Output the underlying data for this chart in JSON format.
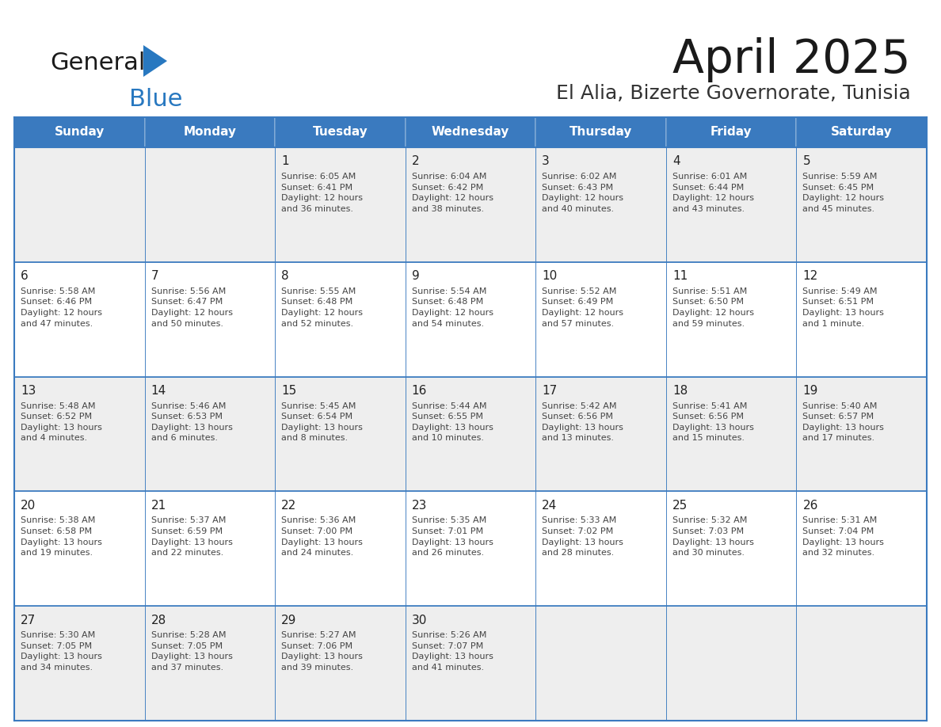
{
  "title": "April 2025",
  "subtitle": "El Alia, Bizerte Governorate, Tunisia",
  "header_color": "#3a7abf",
  "header_text_color": "#ffffff",
  "cell_bg_light": "#eeeeee",
  "cell_bg_white": "#ffffff",
  "day_names": [
    "Sunday",
    "Monday",
    "Tuesday",
    "Wednesday",
    "Thursday",
    "Friday",
    "Saturday"
  ],
  "grid_color": "#3a7abf",
  "text_color": "#333333",
  "day_num_color": "#222222",
  "logo_general_color": "#1a1a1a",
  "logo_blue_color": "#2878c0",
  "logo_triangle_color": "#2878c0",
  "weeks": [
    [
      {
        "day": "",
        "info": ""
      },
      {
        "day": "",
        "info": ""
      },
      {
        "day": "1",
        "info": "Sunrise: 6:05 AM\nSunset: 6:41 PM\nDaylight: 12 hours\nand 36 minutes."
      },
      {
        "day": "2",
        "info": "Sunrise: 6:04 AM\nSunset: 6:42 PM\nDaylight: 12 hours\nand 38 minutes."
      },
      {
        "day": "3",
        "info": "Sunrise: 6:02 AM\nSunset: 6:43 PM\nDaylight: 12 hours\nand 40 minutes."
      },
      {
        "day": "4",
        "info": "Sunrise: 6:01 AM\nSunset: 6:44 PM\nDaylight: 12 hours\nand 43 minutes."
      },
      {
        "day": "5",
        "info": "Sunrise: 5:59 AM\nSunset: 6:45 PM\nDaylight: 12 hours\nand 45 minutes."
      }
    ],
    [
      {
        "day": "6",
        "info": "Sunrise: 5:58 AM\nSunset: 6:46 PM\nDaylight: 12 hours\nand 47 minutes."
      },
      {
        "day": "7",
        "info": "Sunrise: 5:56 AM\nSunset: 6:47 PM\nDaylight: 12 hours\nand 50 minutes."
      },
      {
        "day": "8",
        "info": "Sunrise: 5:55 AM\nSunset: 6:48 PM\nDaylight: 12 hours\nand 52 minutes."
      },
      {
        "day": "9",
        "info": "Sunrise: 5:54 AM\nSunset: 6:48 PM\nDaylight: 12 hours\nand 54 minutes."
      },
      {
        "day": "10",
        "info": "Sunrise: 5:52 AM\nSunset: 6:49 PM\nDaylight: 12 hours\nand 57 minutes."
      },
      {
        "day": "11",
        "info": "Sunrise: 5:51 AM\nSunset: 6:50 PM\nDaylight: 12 hours\nand 59 minutes."
      },
      {
        "day": "12",
        "info": "Sunrise: 5:49 AM\nSunset: 6:51 PM\nDaylight: 13 hours\nand 1 minute."
      }
    ],
    [
      {
        "day": "13",
        "info": "Sunrise: 5:48 AM\nSunset: 6:52 PM\nDaylight: 13 hours\nand 4 minutes."
      },
      {
        "day": "14",
        "info": "Sunrise: 5:46 AM\nSunset: 6:53 PM\nDaylight: 13 hours\nand 6 minutes."
      },
      {
        "day": "15",
        "info": "Sunrise: 5:45 AM\nSunset: 6:54 PM\nDaylight: 13 hours\nand 8 minutes."
      },
      {
        "day": "16",
        "info": "Sunrise: 5:44 AM\nSunset: 6:55 PM\nDaylight: 13 hours\nand 10 minutes."
      },
      {
        "day": "17",
        "info": "Sunrise: 5:42 AM\nSunset: 6:56 PM\nDaylight: 13 hours\nand 13 minutes."
      },
      {
        "day": "18",
        "info": "Sunrise: 5:41 AM\nSunset: 6:56 PM\nDaylight: 13 hours\nand 15 minutes."
      },
      {
        "day": "19",
        "info": "Sunrise: 5:40 AM\nSunset: 6:57 PM\nDaylight: 13 hours\nand 17 minutes."
      }
    ],
    [
      {
        "day": "20",
        "info": "Sunrise: 5:38 AM\nSunset: 6:58 PM\nDaylight: 13 hours\nand 19 minutes."
      },
      {
        "day": "21",
        "info": "Sunrise: 5:37 AM\nSunset: 6:59 PM\nDaylight: 13 hours\nand 22 minutes."
      },
      {
        "day": "22",
        "info": "Sunrise: 5:36 AM\nSunset: 7:00 PM\nDaylight: 13 hours\nand 24 minutes."
      },
      {
        "day": "23",
        "info": "Sunrise: 5:35 AM\nSunset: 7:01 PM\nDaylight: 13 hours\nand 26 minutes."
      },
      {
        "day": "24",
        "info": "Sunrise: 5:33 AM\nSunset: 7:02 PM\nDaylight: 13 hours\nand 28 minutes."
      },
      {
        "day": "25",
        "info": "Sunrise: 5:32 AM\nSunset: 7:03 PM\nDaylight: 13 hours\nand 30 minutes."
      },
      {
        "day": "26",
        "info": "Sunrise: 5:31 AM\nSunset: 7:04 PM\nDaylight: 13 hours\nand 32 minutes."
      }
    ],
    [
      {
        "day": "27",
        "info": "Sunrise: 5:30 AM\nSunset: 7:05 PM\nDaylight: 13 hours\nand 34 minutes."
      },
      {
        "day": "28",
        "info": "Sunrise: 5:28 AM\nSunset: 7:05 PM\nDaylight: 13 hours\nand 37 minutes."
      },
      {
        "day": "29",
        "info": "Sunrise: 5:27 AM\nSunset: 7:06 PM\nDaylight: 13 hours\nand 39 minutes."
      },
      {
        "day": "30",
        "info": "Sunrise: 5:26 AM\nSunset: 7:07 PM\nDaylight: 13 hours\nand 41 minutes."
      },
      {
        "day": "",
        "info": ""
      },
      {
        "day": "",
        "info": ""
      },
      {
        "day": "",
        "info": ""
      }
    ]
  ]
}
